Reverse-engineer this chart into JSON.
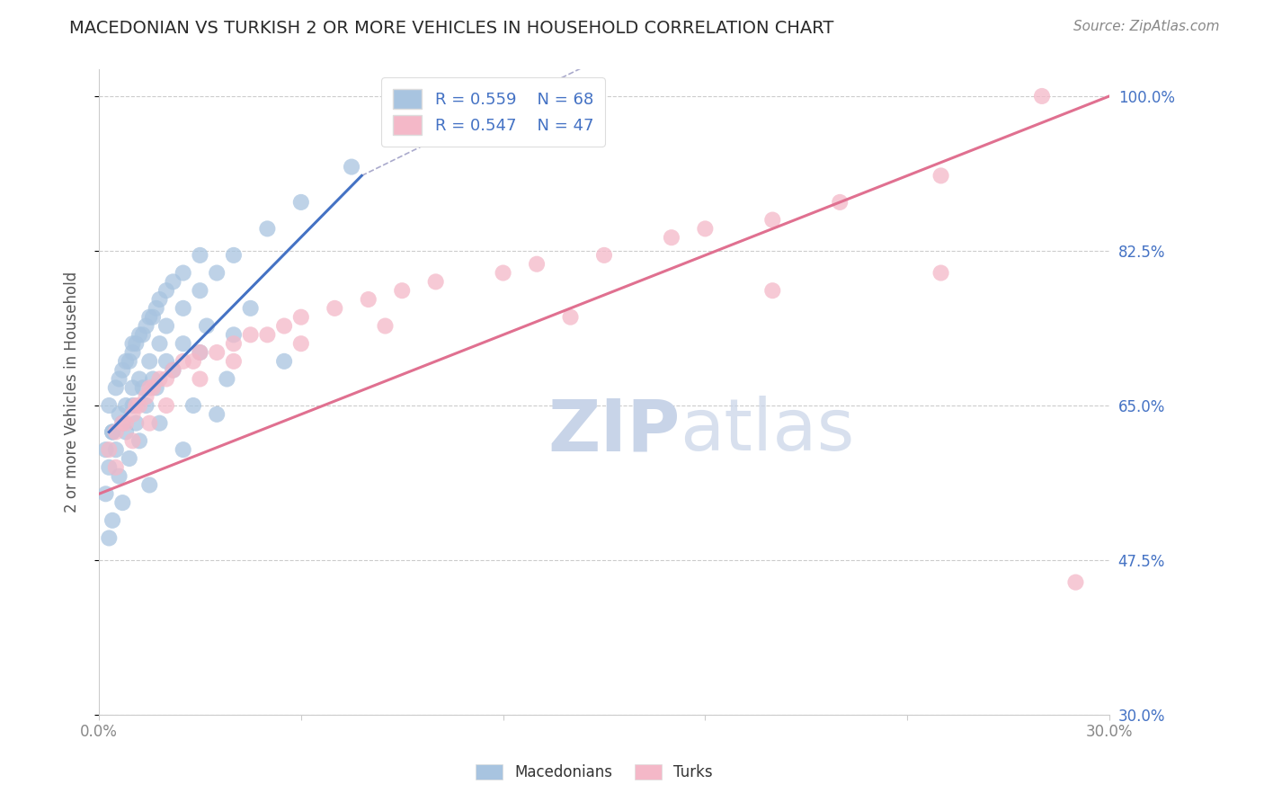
{
  "title": "MACEDONIAN VS TURKISH 2 OR MORE VEHICLES IN HOUSEHOLD CORRELATION CHART",
  "source": "Source: ZipAtlas.com",
  "ylabel": "2 or more Vehicles in Household",
  "xlim": [
    0.0,
    30.0
  ],
  "ylim": [
    30.0,
    103.0
  ],
  "yticks": [
    30.0,
    47.5,
    65.0,
    82.5,
    100.0
  ],
  "xticks": [
    0.0,
    6.0,
    12.0,
    18.0,
    24.0,
    30.0
  ],
  "ytick_labels": [
    "30.0%",
    "47.5%",
    "65.0%",
    "82.5%",
    "100.0%"
  ],
  "legend_r_macedonian": "R = 0.559",
  "legend_n_macedonian": "N = 68",
  "legend_r_turkish": "R = 0.547",
  "legend_n_turkish": "N = 47",
  "macedonian_color": "#a8c4e0",
  "turkish_color": "#f4b8c8",
  "macedonian_line_color": "#4472c4",
  "turkish_line_color": "#e07090",
  "watermark_zip": "ZIP",
  "watermark_atlas": "atlas",
  "watermark_color": "#c8d4e8",
  "mac_scatter_x": [
    0.3,
    0.5,
    0.6,
    0.7,
    0.8,
    0.9,
    1.0,
    1.0,
    1.1,
    1.2,
    1.3,
    1.4,
    1.5,
    1.6,
    1.7,
    1.8,
    2.0,
    2.2,
    2.5,
    3.0,
    0.4,
    0.6,
    0.8,
    1.0,
    1.2,
    1.5,
    1.8,
    2.0,
    2.5,
    3.0,
    3.5,
    4.0,
    5.0,
    6.0,
    7.5,
    0.2,
    0.4,
    0.7,
    1.0,
    1.3,
    1.6,
    2.0,
    2.5,
    3.2,
    4.5,
    0.3,
    0.5,
    0.8,
    1.1,
    1.4,
    1.7,
    2.2,
    3.0,
    4.0,
    0.2,
    0.6,
    0.9,
    1.2,
    1.8,
    2.8,
    3.8,
    0.4,
    1.5,
    2.5,
    3.5,
    5.5,
    0.3,
    0.7
  ],
  "mac_scatter_y": [
    65,
    67,
    68,
    69,
    70,
    70,
    71,
    72,
    72,
    73,
    73,
    74,
    75,
    75,
    76,
    77,
    78,
    79,
    80,
    82,
    62,
    64,
    65,
    67,
    68,
    70,
    72,
    74,
    76,
    78,
    80,
    82,
    85,
    88,
    92,
    60,
    62,
    63,
    65,
    67,
    68,
    70,
    72,
    74,
    76,
    58,
    60,
    62,
    63,
    65,
    67,
    69,
    71,
    73,
    55,
    57,
    59,
    61,
    63,
    65,
    68,
    52,
    56,
    60,
    64,
    70,
    50,
    54
  ],
  "turk_scatter_x": [
    0.3,
    0.5,
    0.7,
    0.8,
    1.0,
    1.1,
    1.2,
    1.4,
    1.5,
    1.6,
    1.8,
    2.0,
    2.2,
    2.5,
    2.8,
    3.0,
    3.5,
    4.0,
    4.5,
    5.0,
    5.5,
    6.0,
    7.0,
    8.0,
    9.0,
    10.0,
    12.0,
    13.0,
    15.0,
    17.0,
    18.0,
    20.0,
    22.0,
    25.0,
    28.0,
    0.5,
    1.0,
    1.5,
    2.0,
    3.0,
    4.0,
    6.0,
    8.5,
    14.0,
    20.0,
    25.0,
    29.0
  ],
  "turk_scatter_y": [
    60,
    62,
    63,
    63,
    64,
    65,
    65,
    66,
    67,
    67,
    68,
    68,
    69,
    70,
    70,
    71,
    71,
    72,
    73,
    73,
    74,
    75,
    76,
    77,
    78,
    79,
    80,
    81,
    82,
    84,
    85,
    86,
    88,
    91,
    100,
    58,
    61,
    63,
    65,
    68,
    70,
    72,
    74,
    75,
    78,
    80,
    45
  ],
  "blue_line_x": [
    0.3,
    7.8
  ],
  "blue_line_y": [
    62.0,
    91.0
  ],
  "dash_line_x": [
    7.8,
    14.5
  ],
  "dash_line_y": [
    91.0,
    103.5
  ],
  "pink_line_x": [
    0.0,
    30.0
  ],
  "pink_line_y": [
    55.0,
    100.0
  ]
}
